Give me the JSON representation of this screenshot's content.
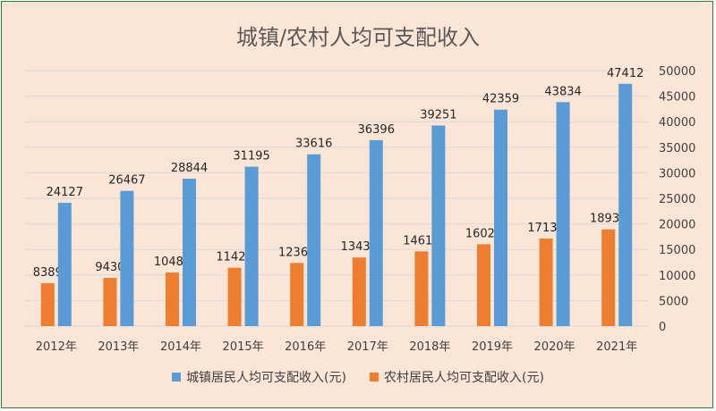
{
  "chart_data": {
    "type": "bar",
    "title": "城镇/农村人均可支配收入",
    "categories": [
      "2012年",
      "2013年",
      "2014年",
      "2015年",
      "2016年",
      "2017年",
      "2018年",
      "2019年",
      "2020年",
      "2021年"
    ],
    "series": [
      {
        "name": "城镇居民人均可支配收入(元)",
        "color": "#5b9bd5",
        "values": [
          24127,
          26467,
          28844,
          31195,
          33616,
          36396,
          39251,
          42359,
          43834,
          47412
        ]
      },
      {
        "name": "农村居民人均可支配收入(元)",
        "color": "#ed7d31",
        "values": [
          8389,
          9430,
          10489,
          11422,
          12363,
          13432,
          14617,
          16021,
          17131,
          18931
        ]
      }
    ],
    "ylim": [
      0,
      50000
    ],
    "yticks": [
      0,
      5000,
      10000,
      15000,
      20000,
      25000,
      30000,
      35000,
      40000,
      45000,
      50000
    ],
    "y_axis_side": "right",
    "grid": true,
    "legend_position": "bottom"
  }
}
